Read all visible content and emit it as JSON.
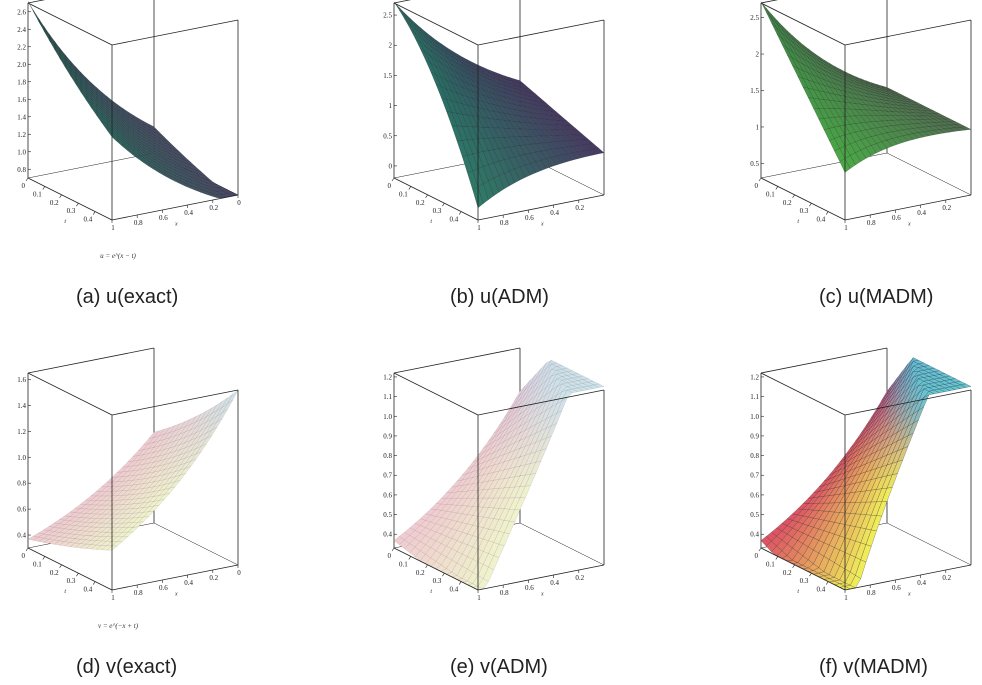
{
  "chart_data": [
    {
      "id": "a",
      "type": "surface3d",
      "fn": "u_exact",
      "caption": "(a)  u(exact)",
      "formula": "u = e^(x − t)",
      "zticks": [
        "2.6",
        "2.4",
        "2.2",
        "2.0",
        "1.8",
        "1.6",
        "1.4",
        "1.2",
        "1.0",
        "0.8"
      ],
      "zlim": [
        0.7,
        2.7
      ],
      "tticks": [
        "0",
        "0.1",
        "0.2",
        "0.3",
        "0.4"
      ],
      "xticks": [
        "1",
        "0.8",
        "0.6",
        "0.4",
        "0.2",
        "0"
      ],
      "xlabel": "x",
      "tlabel": "t",
      "shade": "dark"
    },
    {
      "id": "b",
      "type": "surface3d",
      "fn": "u_adm",
      "caption": "(b)  u(ADM)",
      "formula": "",
      "zticks": [
        "2.5",
        "2",
        "1.5",
        "1",
        "0.5",
        "0"
      ],
      "zlim": [
        -0.2,
        2.7
      ],
      "tticks": [
        "0",
        "0.1",
        "0.2",
        "0.3",
        "0.4"
      ],
      "xticks": [
        "1",
        "0.8",
        "0.6",
        "0.4",
        "0.2"
      ],
      "xlabel": "x",
      "tlabel": "t",
      "shade": "dark"
    },
    {
      "id": "c",
      "type": "surface3d",
      "fn": "u_madm",
      "caption": "(c)  u(MADM)",
      "formula": "",
      "zticks": [
        "2.5",
        "2",
        "1.5",
        "1",
        "0.5"
      ],
      "zlim": [
        0.3,
        2.7
      ],
      "tticks": [
        "0",
        "0.1",
        "0.2",
        "0.3",
        "0.4"
      ],
      "xticks": [
        "1",
        "0.8",
        "0.6",
        "0.4",
        "0.2"
      ],
      "xlabel": "x",
      "tlabel": "t",
      "shade": "dark-green"
    },
    {
      "id": "d",
      "type": "surface3d",
      "fn": "v_exact",
      "caption": "(d)  v(exact)",
      "formula": "v = e^(−x + t)",
      "zticks": [
        "1.6",
        "1.4",
        "1.2",
        "1.0",
        "0.8",
        "0.6",
        "0.4"
      ],
      "zlim": [
        0.3,
        1.65
      ],
      "tticks": [
        "0",
        "0.1",
        "0.2",
        "0.3",
        "0.4"
      ],
      "xticks": [
        "1",
        "0.8",
        "0.6",
        "0.4",
        "0.2",
        "0"
      ],
      "xlabel": "x",
      "tlabel": "t",
      "shade": "light"
    },
    {
      "id": "e",
      "type": "surface3d",
      "fn": "v_adm",
      "caption": "(e)  v(ADM)",
      "formula": "",
      "zticks": [
        "1.2",
        "1.1",
        "1.0",
        "0.9",
        "0.8",
        "0.7",
        "0.6",
        "0.5",
        "0.4"
      ],
      "zlim": [
        0.33,
        1.22
      ],
      "tticks": [
        "0",
        "0.1",
        "0.2",
        "0.3",
        "0.4"
      ],
      "xticks": [
        "1",
        "0.8",
        "0.6",
        "0.4",
        "0.2"
      ],
      "xlabel": "x",
      "tlabel": "t",
      "shade": "light"
    },
    {
      "id": "f",
      "type": "surface3d",
      "fn": "v_madm",
      "caption": "(f)  v(MADM)",
      "formula": "",
      "zticks": [
        "1.2",
        "1.1",
        "1.0",
        "0.9",
        "0.8",
        "0.7",
        "0.6",
        "0.5",
        "0.4"
      ],
      "zlim": [
        0.33,
        1.22
      ],
      "tticks": [
        "0",
        "0.1",
        "0.2",
        "0.3",
        "0.4"
      ],
      "xticks": [
        "1",
        "0.8",
        "0.6",
        "0.4",
        "0.2"
      ],
      "xlabel": "x",
      "tlabel": "t",
      "shade": "vivid"
    }
  ]
}
